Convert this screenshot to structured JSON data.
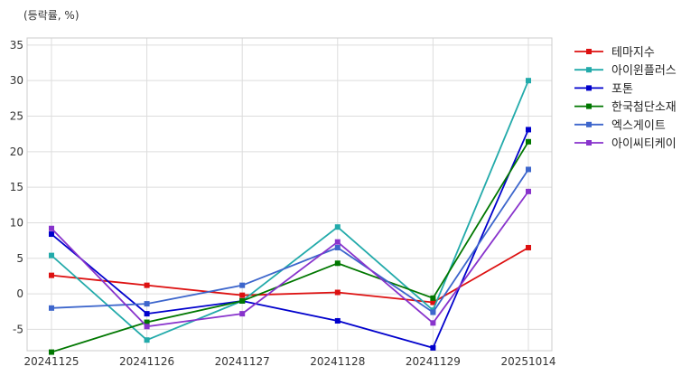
{
  "chart_data": {
    "type": "line",
    "unit_label": "(등락률, %)",
    "categories": [
      "20241125",
      "20241126",
      "20241127",
      "20241128",
      "20241129",
      "20251014"
    ],
    "ylim": [
      -8,
      36
    ],
    "yticks": [
      -5,
      0,
      5,
      10,
      15,
      20,
      25,
      30,
      35
    ],
    "grid": true,
    "legend_position": "right-top",
    "series": [
      {
        "name": "테마지수",
        "color": "#dd1111",
        "values": [
          2.6,
          1.2,
          -0.2,
          0.2,
          -1.2,
          6.5
        ]
      },
      {
        "name": "아이윈플러스",
        "color": "#22aaaa",
        "values": [
          5.4,
          -6.5,
          -1.0,
          9.4,
          -2.3,
          30.0
        ]
      },
      {
        "name": "포톤",
        "color": "#0000cc",
        "values": [
          8.4,
          -2.8,
          -1.0,
          -3.8,
          -7.6,
          23.1
        ]
      },
      {
        "name": "한국첨단소재",
        "color": "#007700",
        "values": [
          -8.2,
          -4.0,
          -1.0,
          4.3,
          -0.6,
          21.4
        ]
      },
      {
        "name": "엑스게이트",
        "color": "#3d66cc",
        "values": [
          -2.0,
          -1.4,
          1.2,
          6.5,
          -2.6,
          17.5
        ]
      },
      {
        "name": "아이씨티케이",
        "color": "#8833cc",
        "values": [
          9.2,
          -4.6,
          -2.8,
          7.3,
          -4.1,
          14.4
        ]
      }
    ]
  }
}
